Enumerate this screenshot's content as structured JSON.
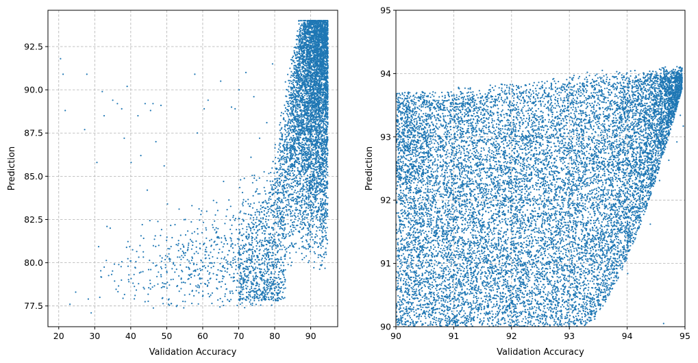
{
  "chart_data": [
    {
      "type": "scatter",
      "xlabel": "Validation Accuracy",
      "ylabel": "Prediction",
      "xlim": [
        17,
        97.5
      ],
      "ylim": [
        76.3,
        94.6
      ],
      "xticks": [
        20,
        30,
        40,
        50,
        60,
        70,
        80,
        90
      ],
      "xtick_labels": [
        "20",
        "30",
        "40",
        "50",
        "60",
        "70",
        "80",
        "90"
      ],
      "yticks": [
        77.5,
        80.0,
        82.5,
        85.0,
        87.5,
        90.0,
        92.5
      ],
      "ytick_labels": [
        "77.5",
        "80.0",
        "82.5",
        "85.0",
        "87.5",
        "90.0",
        "92.5"
      ],
      "grid": true,
      "color": "#1f77b4",
      "points": [
        [
          20.5,
          91.8
        ],
        [
          21.2,
          90.9
        ],
        [
          21.8,
          88.8
        ],
        [
          23.1,
          77.6
        ],
        [
          24.7,
          78.3
        ],
        [
          27.2,
          87.7
        ],
        [
          27.8,
          90.9
        ],
        [
          28.2,
          77.9
        ],
        [
          29.0,
          77.1
        ],
        [
          30.6,
          85.8
        ],
        [
          31.4,
          78.0
        ],
        [
          32.1,
          89.9
        ],
        [
          32.6,
          88.5
        ],
        [
          33.4,
          82.1
        ],
        [
          34.3,
          82.0
        ],
        [
          35.0,
          89.4
        ],
        [
          36.3,
          89.2
        ],
        [
          37.5,
          88.9
        ],
        [
          38.2,
          87.2
        ],
        [
          39.0,
          90.2
        ],
        [
          39.5,
          79.3
        ],
        [
          40.1,
          85.8
        ],
        [
          41.3,
          79.7
        ],
        [
          42.0,
          88.5
        ],
        [
          42.8,
          86.2
        ],
        [
          43.2,
          82.2
        ],
        [
          44.0,
          89.2
        ],
        [
          44.6,
          84.2
        ],
        [
          45.5,
          88.8
        ],
        [
          46.2,
          89.2
        ],
        [
          47.0,
          87.0
        ],
        [
          47.8,
          81.0
        ],
        [
          48.4,
          89.1
        ],
        [
          49.3,
          85.6
        ],
        [
          50.2,
          83.4
        ],
        [
          51.0,
          80.2
        ],
        [
          52.3,
          82.2
        ],
        [
          53.1,
          81.0
        ],
        [
          54.0,
          78.5
        ],
        [
          55.2,
          82.5
        ],
        [
          56.1,
          79.3
        ],
        [
          57.0,
          83.3
        ],
        [
          57.8,
          90.9
        ],
        [
          58.5,
          87.5
        ],
        [
          59.7,
          83.0
        ],
        [
          60.4,
          88.9
        ],
        [
          61.5,
          89.4
        ],
        [
          62.2,
          79.1
        ],
        [
          63.0,
          83.6
        ],
        [
          64.1,
          81.5
        ],
        [
          65.0,
          90.5
        ],
        [
          65.8,
          84.7
        ],
        [
          66.7,
          80.0
        ],
        [
          67.3,
          80.7
        ],
        [
          68.0,
          89.0
        ],
        [
          69.0,
          88.9
        ],
        [
          70.1,
          90.0
        ],
        [
          70.5,
          78.3
        ],
        [
          71.2,
          83.3
        ],
        [
          72.0,
          91.0
        ],
        [
          72.6,
          79.6
        ],
        [
          73.4,
          86.1
        ],
        [
          74.2,
          89.6
        ],
        [
          75.0,
          80.4
        ],
        [
          75.8,
          87.2
        ],
        [
          76.5,
          78.3
        ],
        [
          77.1,
          83.0
        ],
        [
          77.8,
          88.1
        ],
        [
          78.6,
          81.3
        ],
        [
          79.4,
          91.5
        ]
      ]
    },
    {
      "type": "scatter",
      "xlabel": "Validation Accuracy",
      "ylabel": "Prediction",
      "xlim": [
        90,
        95
      ],
      "ylim": [
        90,
        95
      ],
      "xticks": [
        90,
        91,
        92,
        93,
        94,
        95
      ],
      "xtick_labels": [
        "90",
        "91",
        "92",
        "93",
        "94",
        "95"
      ],
      "yticks": [
        90,
        91,
        92,
        93,
        94,
        95
      ],
      "ytick_labels": [
        "90",
        "91",
        "92",
        "93",
        "94",
        "95"
      ],
      "grid": true,
      "color": "#1f77b4",
      "points": [
        [
          90.04,
          93.62
        ],
        [
          90.21,
          93.55
        ],
        [
          90.46,
          93.7
        ],
        [
          90.72,
          93.48
        ],
        [
          91.05,
          93.66
        ],
        [
          91.33,
          93.59
        ],
        [
          91.61,
          93.74
        ],
        [
          91.88,
          93.71
        ],
        [
          92.12,
          93.8
        ],
        [
          92.47,
          93.86
        ],
        [
          92.73,
          93.92
        ],
        [
          93.08,
          93.97
        ],
        [
          93.31,
          94.02
        ],
        [
          93.57,
          94.05
        ],
        [
          93.82,
          94.03
        ],
        [
          94.06,
          94.04
        ],
        [
          94.28,
          94.01
        ],
        [
          94.51,
          93.98
        ],
        [
          94.64,
          94.06
        ],
        [
          94.71,
          93.87
        ],
        [
          94.83,
          93.61
        ],
        [
          94.92,
          93.34
        ],
        [
          94.97,
          93.17
        ],
        [
          94.86,
          92.92
        ],
        [
          94.72,
          92.63
        ],
        [
          94.56,
          92.31
        ],
        [
          94.38,
          92.02
        ],
        [
          94.2,
          91.72
        ],
        [
          94.06,
          91.44
        ],
        [
          93.93,
          91.18
        ],
        [
          93.81,
          90.92
        ],
        [
          93.7,
          90.61
        ],
        [
          93.58,
          90.33
        ],
        [
          93.44,
          90.12
        ],
        [
          94.63,
          90.05
        ],
        [
          93.33,
          90.21
        ],
        [
          93.19,
          90.44
        ],
        [
          93.02,
          90.08
        ],
        [
          94.01,
          90.84
        ],
        [
          94.4,
          91.62
        ]
      ]
    }
  ]
}
